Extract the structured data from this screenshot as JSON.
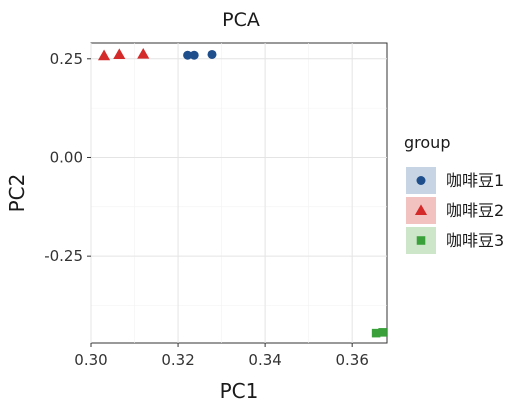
{
  "chart_data": {
    "type": "scatter",
    "title": "PCA",
    "xlabel": "PC1",
    "ylabel": "PC2",
    "xlim": [
      0.3,
      0.368
    ],
    "ylim": [
      -0.47,
      0.29
    ],
    "xticks": [
      "0.30",
      "0.32",
      "0.34",
      "0.36"
    ],
    "xtick_values": [
      0.3,
      0.32,
      0.34,
      0.36
    ],
    "yticks": [
      "0.25",
      "0.00",
      "-0.25"
    ],
    "ytick_values": [
      0.25,
      0.0,
      -0.25
    ],
    "grid": true,
    "legend": {
      "title": "group",
      "position": "right"
    },
    "series": [
      {
        "name": "咖啡豆1",
        "marker": "circle",
        "color": "#1f4e8c",
        "points": [
          [
            0.3222,
            0.259
          ],
          [
            0.3237,
            0.259
          ],
          [
            0.3278,
            0.261
          ]
        ]
      },
      {
        "name": "咖啡豆2",
        "marker": "triangle",
        "color": "#d42a2a",
        "points": [
          [
            0.303,
            0.258
          ],
          [
            0.3065,
            0.261
          ],
          [
            0.312,
            0.262
          ]
        ]
      },
      {
        "name": "咖啡豆3",
        "marker": "square",
        "color": "#3aa13a",
        "points": [
          [
            0.3655,
            -0.445
          ],
          [
            0.367,
            -0.443
          ]
        ]
      }
    ],
    "legend_key_fills": [
      "#c6d4e4",
      "#f2c2c0",
      "#cde5c8"
    ]
  }
}
